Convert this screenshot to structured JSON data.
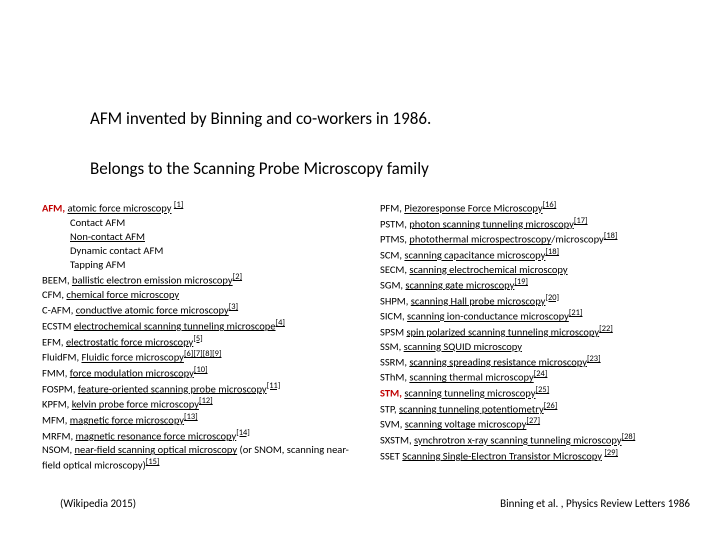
{
  "headings": {
    "line1": "AFM invented by Binning and co-workers in 1986.",
    "line2": "Belongs to the Scanning Probe Microscopy family"
  },
  "left": [
    {
      "pre": "AFM, ",
      "pre_red": true,
      "link": "atomic force microscopy",
      "post": " ",
      "ref": "[1]",
      "ref_u": true
    },
    {
      "text": "Contact AFM",
      "indent": true
    },
    {
      "text": "Non-contact AFM",
      "indent": true,
      "u": true
    },
    {
      "text": "Dynamic contact AFM",
      "indent": true
    },
    {
      "text": "Tapping AFM",
      "indent": true
    },
    {
      "pre": "BEEM, ",
      "link": "ballistic electron emission microscopy",
      "ref": "[2]",
      "ref_u": true
    },
    {
      "pre": "CFM, ",
      "link": "chemical force microscopy"
    },
    {
      "pre": "C-AFM, ",
      "link": "conductive atomic force microscopy",
      "ref": "[3]",
      "ref_u": true
    },
    {
      "pre": "ECSTM ",
      "link": "electrochemical scanning tunneling microscope",
      "ref": "[4]",
      "ref_u": true
    },
    {
      "pre": "EFM, ",
      "link": "electrostatic force microscopy",
      "ref": "[5]",
      "ref_u": true
    },
    {
      "pre": "FluidFM, ",
      "link": "Fluidic force microscopy",
      "ref": "[6][7][8][9]",
      "ref_u": true
    },
    {
      "pre": "FMM, ",
      "link": "force modulation microscopy",
      "ref": "[10]",
      "ref_u": true
    },
    {
      "pre": "FOSPM, ",
      "link": "feature-oriented scanning probe microscopy",
      "ref": "[11]",
      "ref_u": true
    },
    {
      "pre": "KPFM, ",
      "link": "kelvin probe force microscopy",
      "ref": "[12]",
      "ref_u": true
    },
    {
      "pre": "MFM, ",
      "link": "magnetic force microscopy",
      "ref": "[13]",
      "ref_u": true
    },
    {
      "pre": "MRFM, ",
      "link": "magnetic resonance force microscopy",
      "ref": "[14]",
      "ref_u": true
    },
    {
      "pre": "NSOM, ",
      "link": "near-field scanning optical microscopy",
      "post": " (or SNOM, scanning near-field optical microscopy)",
      "ref": "[15]",
      "ref_u": true
    }
  ],
  "right": [
    {
      "pre": "PFM, ",
      "link": "Piezoresponse Force Microscopy",
      "ref": "[16]",
      "ref_u": true
    },
    {
      "pre": "PSTM, ",
      "link": "photon scanning tunneling microscopy",
      "ref": "[17]",
      "ref_u": true
    },
    {
      "pre": "PTMS, ",
      "link": "photothermal microspectroscopy",
      "post": "/microscopy",
      "ref": "[18]",
      "ref_u": true
    },
    {
      "pre": "SCM, ",
      "link": "scanning capacitance microscopy",
      "ref": "[18]",
      "ref_u": true
    },
    {
      "pre": "SECM, ",
      "link": "scanning electrochemical microscopy"
    },
    {
      "pre": "SGM, ",
      "link": "scanning gate microscopy",
      "ref": "[19]",
      "ref_u": true
    },
    {
      "pre": "SHPM, ",
      "link": "scanning Hall probe microscopy",
      "ref": "[20]",
      "ref_u": true
    },
    {
      "pre": "SICM, ",
      "link": "scanning ion-conductance microscopy",
      "ref": "[21]",
      "ref_u": true
    },
    {
      "pre": "SPSM ",
      "link": "spin polarized scanning tunneling microscopy",
      "ref": "[22]",
      "ref_u": true
    },
    {
      "pre": "SSM, ",
      "link": "scanning SQUID microscopy"
    },
    {
      "pre": "SSRM, ",
      "link": "scanning spreading resistance microscopy",
      "ref": "[23]",
      "ref_u": true
    },
    {
      "pre": "SThM, ",
      "link": "scanning thermal microscopy",
      "ref": "[24]",
      "ref_u": true
    },
    {
      "pre": "STM, ",
      "pre_red": true,
      "link": "scanning tunneling microscopy",
      "ref": "[25]",
      "ref_u": true
    },
    {
      "pre": "STP, ",
      "link": "scanning tunneling potentiometry",
      "ref": "[26]",
      "ref_u": true
    },
    {
      "pre": "SVM, ",
      "link": "scanning voltage microscopy",
      "ref": "[27]",
      "ref_u": true
    },
    {
      "pre": "SXSTM, ",
      "link": "synchrotron x-ray scanning tunneling microscopy",
      "ref": "[28]",
      "ref_u": true
    },
    {
      "pre": "SSET ",
      "link": "Scanning Single-Electron Transistor Microscopy",
      "post": " ",
      "ref": "[29]",
      "ref_u": true
    }
  ],
  "footer": {
    "left": "(Wikipedia 2015)",
    "right": "Binning et al. , Physics Review Letters 1986"
  },
  "style": {
    "bg": "#ffffff",
    "text": "#000000",
    "red": "#c00000",
    "heading_fontsize": 17,
    "body_fontsize": 10.5
  }
}
